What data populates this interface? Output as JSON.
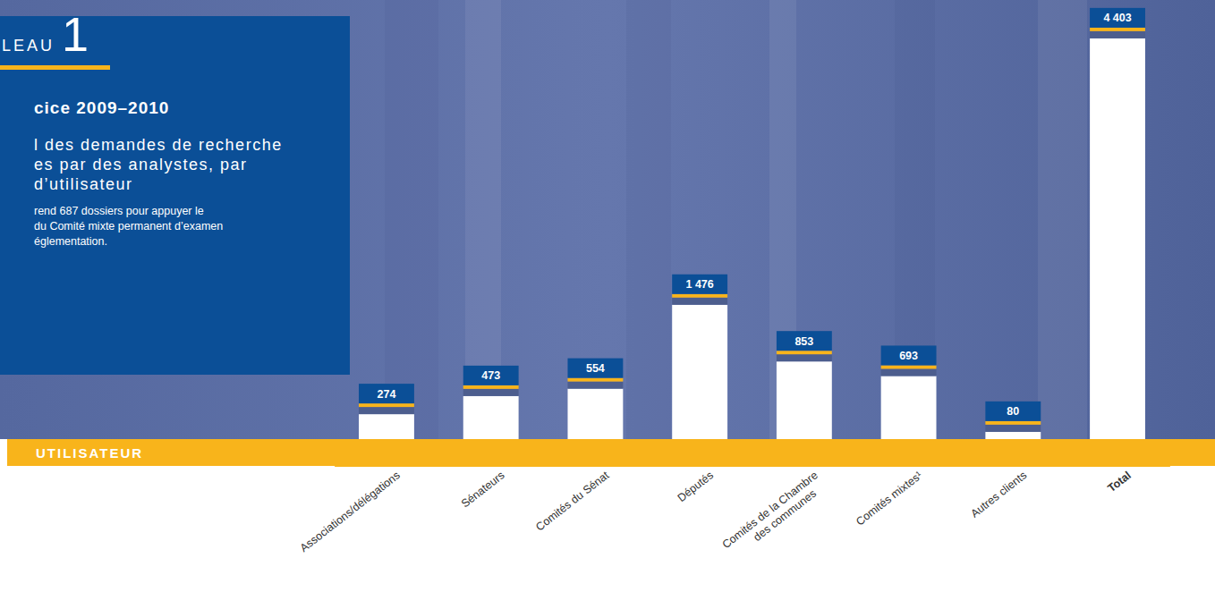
{
  "chart_data": {
    "type": "bar",
    "table_label": "LEAU 1",
    "title": "cice 2009–2010",
    "subtitle": [
      "l des demandes de recherche",
      "es par des analystes, par",
      "d’utilisateur"
    ],
    "annotations": [
      "rend 687 dossiers pour appuyer le",
      "du Comité mixte permanent d’examen",
      "églementation."
    ],
    "x_label": "UTILISATEUR",
    "categories": [
      "Associations/délégations",
      "Sénateurs",
      "Comités du Sénat",
      "Députés",
      "Comités de la Chambre des communes",
      "Comités mixtes¹",
      "Autres clients",
      "Total"
    ],
    "values": [
      274,
      473,
      554,
      1476,
      853,
      693,
      80,
      4403
    ],
    "value_labels": [
      "274",
      "473",
      "554",
      "1 476",
      "853",
      "693",
      "80",
      "4 403"
    ],
    "color": "#ffffff",
    "ylim": [
      0,
      4500
    ],
    "data_labels": true,
    "tick_labels": "x"
  }
}
